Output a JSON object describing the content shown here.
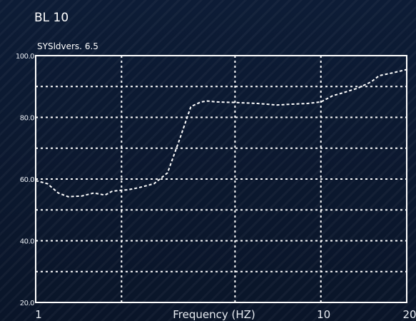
{
  "chart_data": {
    "type": "line",
    "title": "BL 10",
    "subtitle": "SYSldvers. 6.5",
    "xlabel": "Frequency (HZ)",
    "ylabel": "",
    "x_scale": "log",
    "xlim": [
      1,
      20
    ],
    "ylim": [
      20,
      100
    ],
    "xticks": [
      {
        "value": 1,
        "label": "1"
      },
      {
        "value": 10,
        "label": "10"
      },
      {
        "value": 20,
        "label": "20"
      }
    ],
    "yticks": [
      {
        "value": 100,
        "label": "100.0"
      },
      {
        "value": 80,
        "label": "80.0"
      },
      {
        "value": 60,
        "label": "60.0"
      },
      {
        "value": 40,
        "label": "40.0"
      },
      {
        "value": 20,
        "label": "20.0"
      }
    ],
    "grid": true,
    "series": [
      {
        "x": [
          1.0,
          1.1,
          1.2,
          1.3,
          1.45,
          1.6,
          1.75,
          1.85,
          1.95,
          2.1,
          2.3,
          2.6,
          2.9,
          3.2,
          3.5,
          3.8,
          4.0,
          4.3,
          5.0,
          6.0,
          7.0,
          8.0,
          9.0,
          10.0,
          11.0,
          12.0,
          13.5,
          15.0,
          16.0,
          18.0,
          20.0
        ],
        "y": [
          59.5,
          58.5,
          55.5,
          54.3,
          54.5,
          55.5,
          54.8,
          56.0,
          56.3,
          56.5,
          57.2,
          58.5,
          62.0,
          73.0,
          83.5,
          85.0,
          85.3,
          85.0,
          84.8,
          84.5,
          84.0,
          84.3,
          84.5,
          85.0,
          87.0,
          88.0,
          89.5,
          91.5,
          93.5,
          94.5,
          95.5
        ]
      }
    ]
  }
}
